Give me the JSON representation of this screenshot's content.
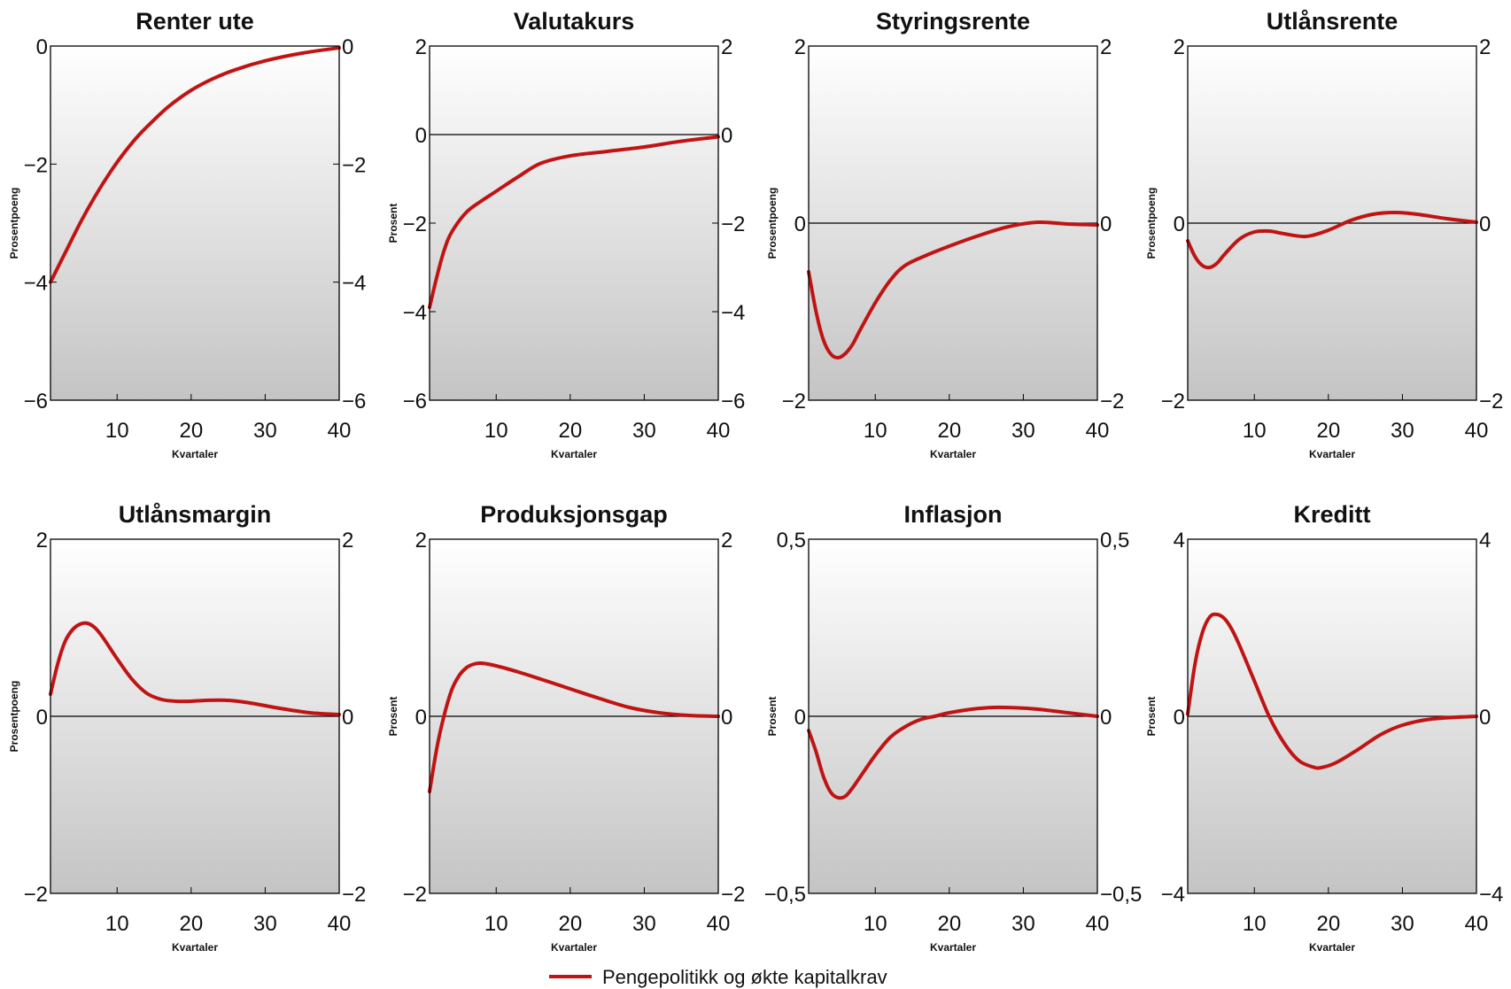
{
  "chart_data": [
    {
      "type": "line",
      "title": "Renter ute",
      "xlabel": "Kvartaler",
      "ylabel": "Prosentpoeng",
      "xlim": [
        1,
        40
      ],
      "ylim": [
        -6,
        0
      ],
      "xticks": [
        "10",
        "20",
        "30",
        "40"
      ],
      "yticks": [
        "0",
        "−2",
        "−4",
        "−6"
      ],
      "zero_line": false,
      "series": [
        {
          "name": "Pengepolitikk og økte kapitalkrav",
          "color": "#c01414",
          "x": [
            1,
            3,
            5,
            7,
            9,
            11,
            13,
            15,
            17,
            20,
            23,
            26,
            30,
            35,
            40
          ],
          "y": [
            -4.0,
            -3.5,
            -3.0,
            -2.55,
            -2.15,
            -1.8,
            -1.5,
            -1.25,
            -1.02,
            -0.75,
            -0.55,
            -0.4,
            -0.25,
            -0.12,
            -0.03
          ]
        }
      ]
    },
    {
      "type": "line",
      "title": "Valutakurs",
      "xlabel": "Kvartaler",
      "ylabel": "Prosent",
      "xlim": [
        1,
        40
      ],
      "ylim": [
        -6,
        2
      ],
      "xticks": [
        "10",
        "20",
        "30",
        "40"
      ],
      "yticks": [
        "2",
        "0",
        "−2",
        "−4",
        "−6"
      ],
      "zero_line": true,
      "series": [
        {
          "name": "Pengepolitikk og økte kapitalkrav",
          "color": "#c01414",
          "x": [
            1,
            2,
            3,
            4,
            6,
            8,
            10,
            13,
            16,
            20,
            25,
            30,
            35,
            40
          ],
          "y": [
            -3.9,
            -3.2,
            -2.6,
            -2.2,
            -1.75,
            -1.5,
            -1.28,
            -0.95,
            -0.65,
            -0.48,
            -0.38,
            -0.28,
            -0.15,
            -0.05
          ]
        }
      ]
    },
    {
      "type": "line",
      "title": "Styringsrente",
      "xlabel": "Kvartaler",
      "ylabel": "Prosentpoeng",
      "xlim": [
        1,
        40
      ],
      "ylim": [
        -2,
        2
      ],
      "xticks": [
        "10",
        "20",
        "30",
        "40"
      ],
      "yticks": [
        "2",
        "0",
        "−2"
      ],
      "zero_line": true,
      "series": [
        {
          "name": "Pengepolitikk og økte kapitalkrav",
          "color": "#c01414",
          "x": [
            1,
            2,
            3,
            4,
            5,
            6,
            7,
            8,
            10,
            12,
            14,
            17,
            20,
            24,
            28,
            32,
            36,
            40
          ],
          "y": [
            -0.55,
            -1.0,
            -1.32,
            -1.48,
            -1.52,
            -1.47,
            -1.36,
            -1.2,
            -0.9,
            -0.65,
            -0.48,
            -0.36,
            -0.26,
            -0.14,
            -0.04,
            0.01,
            -0.01,
            -0.02
          ]
        }
      ]
    },
    {
      "type": "line",
      "title": "Utlånsrente",
      "xlabel": "Kvartaler",
      "ylabel": "Prosentpoeng",
      "xlim": [
        1,
        40
      ],
      "ylim": [
        -2,
        2
      ],
      "xticks": [
        "10",
        "20",
        "30",
        "40"
      ],
      "yticks": [
        "2",
        "0",
        "−2"
      ],
      "zero_line": true,
      "series": [
        {
          "name": "Pengepolitikk og økte kapitalkrav",
          "color": "#c01414",
          "x": [
            1,
            2,
            3,
            4,
            5,
            6,
            8,
            10,
            12,
            14,
            17,
            20,
            23,
            26,
            29,
            32,
            36,
            40
          ],
          "y": [
            -0.2,
            -0.38,
            -0.48,
            -0.5,
            -0.45,
            -0.35,
            -0.18,
            -0.1,
            -0.09,
            -0.12,
            -0.15,
            -0.08,
            0.03,
            0.1,
            0.12,
            0.1,
            0.05,
            0.01
          ]
        }
      ]
    },
    {
      "type": "line",
      "title": "Utlånsmargin",
      "xlabel": "Kvartaler",
      "ylabel": "Prosentpoeng",
      "xlim": [
        1,
        40
      ],
      "ylim": [
        -2,
        2
      ],
      "xticks": [
        "10",
        "20",
        "30",
        "40"
      ],
      "yticks": [
        "2",
        "0",
        "−2"
      ],
      "zero_line": true,
      "series": [
        {
          "name": "Pengepolitikk og økte kapitalkrav",
          "color": "#c01414",
          "x": [
            1,
            2,
            3,
            4,
            5,
            6,
            7,
            8,
            10,
            12,
            14,
            16,
            18,
            20,
            22,
            25,
            28,
            32,
            36,
            40
          ],
          "y": [
            0.25,
            0.6,
            0.85,
            0.98,
            1.04,
            1.05,
            1.0,
            0.9,
            0.65,
            0.42,
            0.26,
            0.19,
            0.17,
            0.17,
            0.18,
            0.18,
            0.15,
            0.09,
            0.04,
            0.02
          ]
        }
      ]
    },
    {
      "type": "line",
      "title": "Produksjonsgap",
      "xlabel": "Kvartaler",
      "ylabel": "Prosent",
      "xlim": [
        1,
        40
      ],
      "ylim": [
        -2,
        2
      ],
      "xticks": [
        "10",
        "20",
        "30",
        "40"
      ],
      "yticks": [
        "2",
        "0",
        "−2"
      ],
      "zero_line": true,
      "series": [
        {
          "name": "Pengepolitikk og økte kapitalkrav",
          "color": "#c01414",
          "x": [
            1,
            2,
            3,
            4,
            5,
            6,
            7,
            8,
            10,
            13,
            16,
            20,
            24,
            28,
            32,
            36,
            40
          ],
          "y": [
            -0.85,
            -0.35,
            0.02,
            0.3,
            0.46,
            0.55,
            0.59,
            0.6,
            0.57,
            0.5,
            0.42,
            0.31,
            0.2,
            0.1,
            0.04,
            0.01,
            0.0
          ]
        }
      ]
    },
    {
      "type": "line",
      "title": "Inflasjon",
      "xlabel": "Kvartaler",
      "ylabel": "Prosent",
      "xlim": [
        1,
        40
      ],
      "ylim": [
        -0.5,
        0.5
      ],
      "xticks": [
        "10",
        "20",
        "30",
        "40"
      ],
      "yticks": [
        "0,5",
        "0",
        "−0,5"
      ],
      "zero_line": true,
      "series": [
        {
          "name": "Pengepolitikk og økte kapitalkrav",
          "color": "#c01414",
          "x": [
            1,
            2,
            3,
            4,
            5,
            6,
            7,
            8,
            10,
            12,
            14,
            16,
            18,
            20,
            23,
            26,
            29,
            32,
            36,
            40
          ],
          "y": [
            -0.04,
            -0.1,
            -0.17,
            -0.215,
            -0.23,
            -0.225,
            -0.2,
            -0.17,
            -0.11,
            -0.06,
            -0.03,
            -0.01,
            0.0,
            0.01,
            0.02,
            0.025,
            0.024,
            0.02,
            0.01,
            0.0
          ]
        }
      ]
    },
    {
      "type": "line",
      "title": "Kreditt",
      "xlabel": "Kvartaler",
      "ylabel": "Prosent",
      "xlim": [
        1,
        40
      ],
      "ylim": [
        -4,
        4
      ],
      "xticks": [
        "10",
        "20",
        "30",
        "40"
      ],
      "yticks": [
        "4",
        "0",
        "−4"
      ],
      "zero_line": true,
      "series": [
        {
          "name": "Pengepolitikk og økte kapitalkrav",
          "color": "#c01414",
          "x": [
            1,
            2,
            3,
            4,
            5,
            6,
            7,
            8,
            10,
            12,
            14,
            16,
            18,
            19,
            21,
            24,
            27,
            30,
            34,
            40
          ],
          "y": [
            0.05,
            1.2,
            1.9,
            2.25,
            2.3,
            2.2,
            1.95,
            1.6,
            0.8,
            0.0,
            -0.6,
            -1.0,
            -1.15,
            -1.16,
            -1.05,
            -0.75,
            -0.42,
            -0.2,
            -0.06,
            0.0
          ]
        }
      ]
    }
  ],
  "legend": {
    "label": "Pengepolitikk og økte kapitalkrav",
    "color": "#c01414",
    "position": "bottom-center"
  }
}
